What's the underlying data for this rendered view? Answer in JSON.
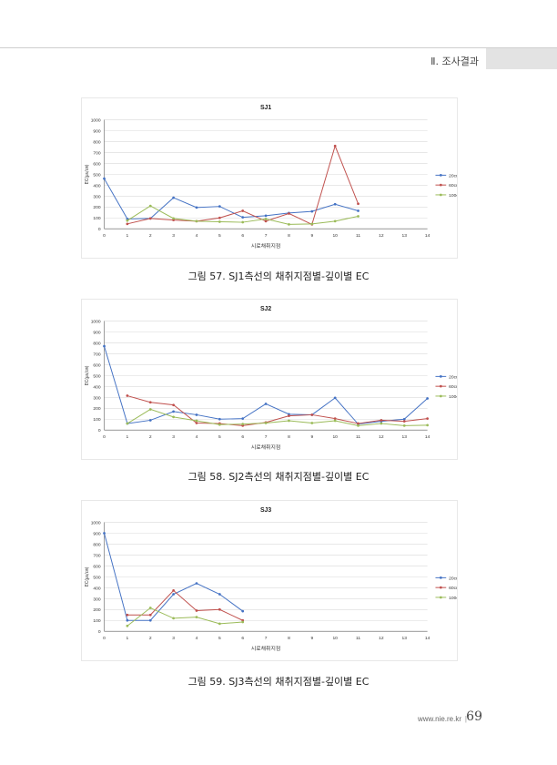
{
  "header": {
    "section": "Ⅱ. 조사결과"
  },
  "footer": {
    "url": "www.nie.re.kr",
    "separator": "|",
    "page": "69"
  },
  "colors": {
    "s20": "#4472c4",
    "s60": "#c0504d",
    "s100": "#9bbb59",
    "grid": "#d9d9d9",
    "axis": "#595959"
  },
  "chart_data": [
    {
      "type": "line",
      "title": "SJ1",
      "xlabel": "시료채취지점",
      "ylabel": "EC(㎲/㎝)",
      "xlim": [
        0,
        14
      ],
      "ylim": [
        0,
        1000
      ],
      "xticks": [
        "0",
        "1",
        "2",
        "3",
        "4",
        "5",
        "6",
        "7",
        "8",
        "9",
        "10",
        "11",
        "12",
        "13",
        "14"
      ],
      "yticks": [
        "0",
        "100",
        "200",
        "300",
        "400",
        "500",
        "600",
        "700",
        "800",
        "900",
        "1000"
      ],
      "grid": true,
      "legend": "right",
      "series": [
        {
          "name": "20cm",
          "x": [
            0,
            1,
            2,
            3,
            4,
            5,
            6,
            7,
            8,
            9,
            10,
            11
          ],
          "y": [
            460,
            90,
            95,
            285,
            195,
            205,
            105,
            120,
            145,
            160,
            225,
            165
          ]
        },
        {
          "name": "60cm",
          "x": [
            1,
            2,
            3,
            4,
            5,
            6,
            7,
            8,
            9,
            10,
            11
          ],
          "y": [
            45,
            95,
            80,
            70,
            100,
            165,
            70,
            140,
            40,
            760,
            230
          ]
        },
        {
          "name": "100cm",
          "x": [
            1,
            2,
            3,
            4,
            5,
            6,
            7,
            8,
            9,
            10,
            11
          ],
          "y": [
            75,
            210,
            95,
            70,
            65,
            60,
            90,
            40,
            45,
            70,
            115
          ]
        }
      ],
      "caption": "그림 57. SJ1측선의 채취지점별-깊이별 EC"
    },
    {
      "type": "line",
      "title": "SJ2",
      "xlabel": "시료채취지점",
      "ylabel": "EC(㎲/㎝)",
      "xlim": [
        0,
        14
      ],
      "ylim": [
        0,
        1000
      ],
      "xticks": [
        "0",
        "1",
        "2",
        "3",
        "4",
        "5",
        "6",
        "7",
        "8",
        "9",
        "10",
        "11",
        "12",
        "13",
        "14"
      ],
      "yticks": [
        "0",
        "100",
        "200",
        "300",
        "400",
        "500",
        "600",
        "700",
        "800",
        "900",
        "1000"
      ],
      "grid": true,
      "legend": "right",
      "series": [
        {
          "name": "20cm",
          "x": [
            0,
            1,
            2,
            3,
            4,
            5,
            6,
            7,
            8,
            9,
            10,
            11,
            12,
            13,
            14
          ],
          "y": [
            770,
            60,
            90,
            170,
            140,
            100,
            105,
            240,
            145,
            140,
            295,
            55,
            80,
            100,
            290
          ]
        },
        {
          "name": "60cm",
          "x": [
            1,
            2,
            3,
            4,
            5,
            6,
            7,
            8,
            9,
            10,
            11,
            12,
            13,
            14
          ],
          "y": [
            315,
            255,
            230,
            65,
            60,
            40,
            70,
            130,
            140,
            105,
            60,
            90,
            80,
            105
          ]
        },
        {
          "name": "100cm",
          "x": [
            1,
            2,
            3,
            4,
            5,
            6,
            7,
            8,
            9,
            10,
            11,
            12,
            13,
            14
          ],
          "y": [
            60,
            190,
            120,
            85,
            50,
            55,
            65,
            85,
            65,
            85,
            40,
            60,
            40,
            45
          ]
        }
      ],
      "caption": "그림 58. SJ2측선의 채취지점별-깊이별 EC"
    },
    {
      "type": "line",
      "title": "SJ3",
      "xlabel": "시료채취지점",
      "ylabel": "EC(㎲/㎝)",
      "xlim": [
        0,
        14
      ],
      "ylim": [
        0,
        1000
      ],
      "xticks": [
        "0",
        "1",
        "2",
        "3",
        "4",
        "5",
        "6",
        "7",
        "8",
        "9",
        "10",
        "11",
        "12",
        "13",
        "14"
      ],
      "yticks": [
        "0",
        "100",
        "200",
        "300",
        "400",
        "500",
        "600",
        "700",
        "800",
        "900",
        "1000"
      ],
      "grid": true,
      "legend": "right",
      "series": [
        {
          "name": "20cm",
          "x": [
            0,
            1,
            2,
            3,
            4,
            5,
            6
          ],
          "y": [
            900,
            100,
            100,
            340,
            440,
            340,
            185
          ]
        },
        {
          "name": "60cm",
          "x": [
            1,
            2,
            3,
            4,
            5,
            6
          ],
          "y": [
            150,
            150,
            375,
            190,
            200,
            100
          ]
        },
        {
          "name": "100cm",
          "x": [
            1,
            2,
            3,
            4,
            5,
            6
          ],
          "y": [
            50,
            215,
            120,
            130,
            70,
            85
          ]
        }
      ],
      "caption": "그림 59. SJ3측선의 채취지점별-깊이별 EC"
    }
  ]
}
